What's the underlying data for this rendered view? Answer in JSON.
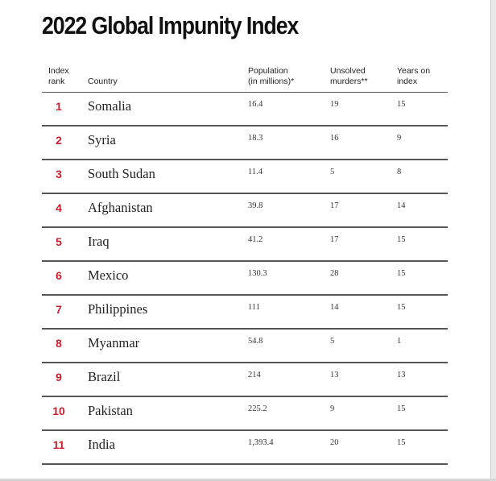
{
  "title": "2022 Global Impunity Index",
  "headers": {
    "rank": "Index\nrank",
    "country": "Country",
    "population": "Population\n(in millions)*",
    "murders": "Unsolved\nmurders**",
    "years": "Years on\nindex"
  },
  "rows": [
    {
      "rank": "1",
      "country": "Somalia",
      "population": "16.4",
      "murders": "19",
      "years": "15"
    },
    {
      "rank": "2",
      "country": "Syria",
      "population": "18.3",
      "murders": "16",
      "years": "9"
    },
    {
      "rank": "3",
      "country": "South Sudan",
      "population": "11.4",
      "murders": "5",
      "years": "8"
    },
    {
      "rank": "4",
      "country": "Afghanistan",
      "population": "39.8",
      "murders": "17",
      "years": "14"
    },
    {
      "rank": "5",
      "country": "Iraq",
      "population": "41.2",
      "murders": "17",
      "years": "15"
    },
    {
      "rank": "6",
      "country": "Mexico",
      "population": "130.3",
      "murders": "28",
      "years": "15"
    },
    {
      "rank": "7",
      "country": "Philippines",
      "population": "111",
      "murders": "14",
      "years": "15"
    },
    {
      "rank": "8",
      "country": "Myanmar",
      "population": "54.8",
      "murders": "5",
      "years": "1"
    },
    {
      "rank": "9",
      "country": "Brazil",
      "population": "214",
      "murders": "13",
      "years": "13"
    },
    {
      "rank": "10",
      "country": "Pakistan",
      "population": "225.2",
      "murders": "9",
      "years": "15"
    },
    {
      "rank": "11",
      "country": "India",
      "population": "1,393.4",
      "murders": "20",
      "years": "15"
    }
  ],
  "colors": {
    "rank": "#c8202f",
    "text": "#222222",
    "rule": "#555555"
  }
}
